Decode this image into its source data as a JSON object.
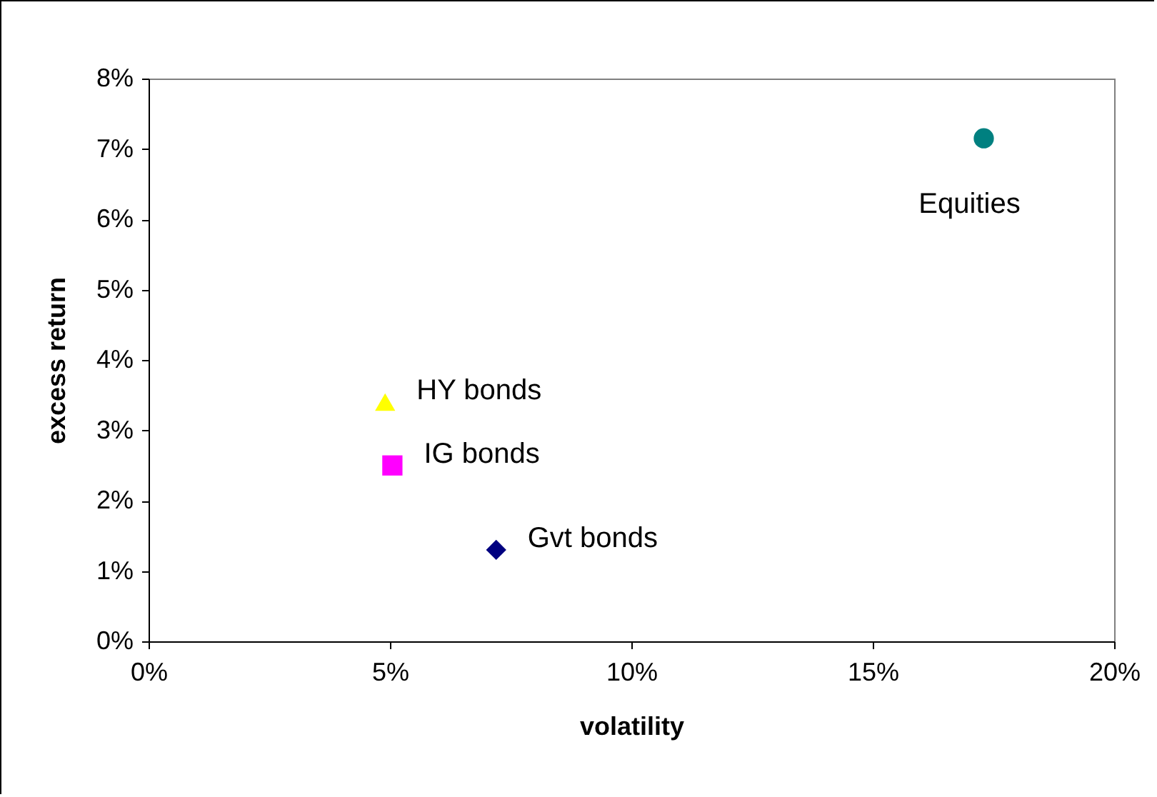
{
  "chart_data": {
    "type": "scatter",
    "xlabel": "volatility",
    "ylabel": "excess return",
    "xlim": [
      0,
      20
    ],
    "ylim": [
      0,
      8
    ],
    "xticks": [
      {
        "value": 0,
        "label": "0%"
      },
      {
        "value": 5,
        "label": "5%"
      },
      {
        "value": 10,
        "label": "10%"
      },
      {
        "value": 15,
        "label": "15%"
      },
      {
        "value": 20,
        "label": "20%"
      }
    ],
    "yticks": [
      {
        "value": 0,
        "label": "0%"
      },
      {
        "value": 1,
        "label": "1%"
      },
      {
        "value": 2,
        "label": "2%"
      },
      {
        "value": 3,
        "label": "3%"
      },
      {
        "value": 4,
        "label": "4%"
      },
      {
        "value": 5,
        "label": "5%"
      },
      {
        "value": 6,
        "label": "6%"
      },
      {
        "value": 7,
        "label": "7%"
      },
      {
        "value": 8,
        "label": "8%"
      }
    ],
    "grid": false,
    "legend": false,
    "series": [
      {
        "name": "Equities",
        "color": "#008080",
        "marker": "circle",
        "x": [
          17.3
        ],
        "values": [
          7.15
        ]
      },
      {
        "name": "HY bonds",
        "color": "#ffff00",
        "marker": "triangle",
        "x": [
          4.9
        ],
        "values": [
          3.4
        ]
      },
      {
        "name": "IG bonds",
        "color": "#ff00ff",
        "marker": "square",
        "x": [
          5.05
        ],
        "values": [
          2.5
        ]
      },
      {
        "name": "Gvt bonds",
        "color": "#000080",
        "marker": "diamond",
        "x": [
          7.2
        ],
        "values": [
          1.3
        ]
      }
    ]
  }
}
